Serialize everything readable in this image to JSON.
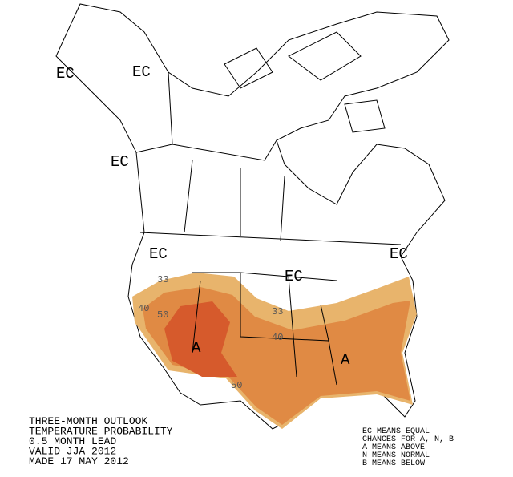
{
  "map": {
    "ec_labels": [
      "EC",
      "EC",
      "EC",
      "EC",
      "EC",
      "EC"
    ],
    "contour_labels": [
      "33",
      "40",
      "50",
      "33",
      "40",
      "50"
    ],
    "region_labels": [
      "A",
      "A"
    ],
    "title_lines": [
      "THREE-MONTH OUTLOOK",
      "TEMPERATURE PROBABILITY",
      "0.5 MONTH LEAD",
      "VALID JJA 2012",
      "MADE 17 MAY 2012"
    ],
    "legend_lines": [
      "EC MEANS EQUAL",
      "CHANCES FOR A, N, B",
      "A MEANS ABOVE",
      "N MEANS NORMAL",
      "B MEANS BELOW"
    ]
  }
}
